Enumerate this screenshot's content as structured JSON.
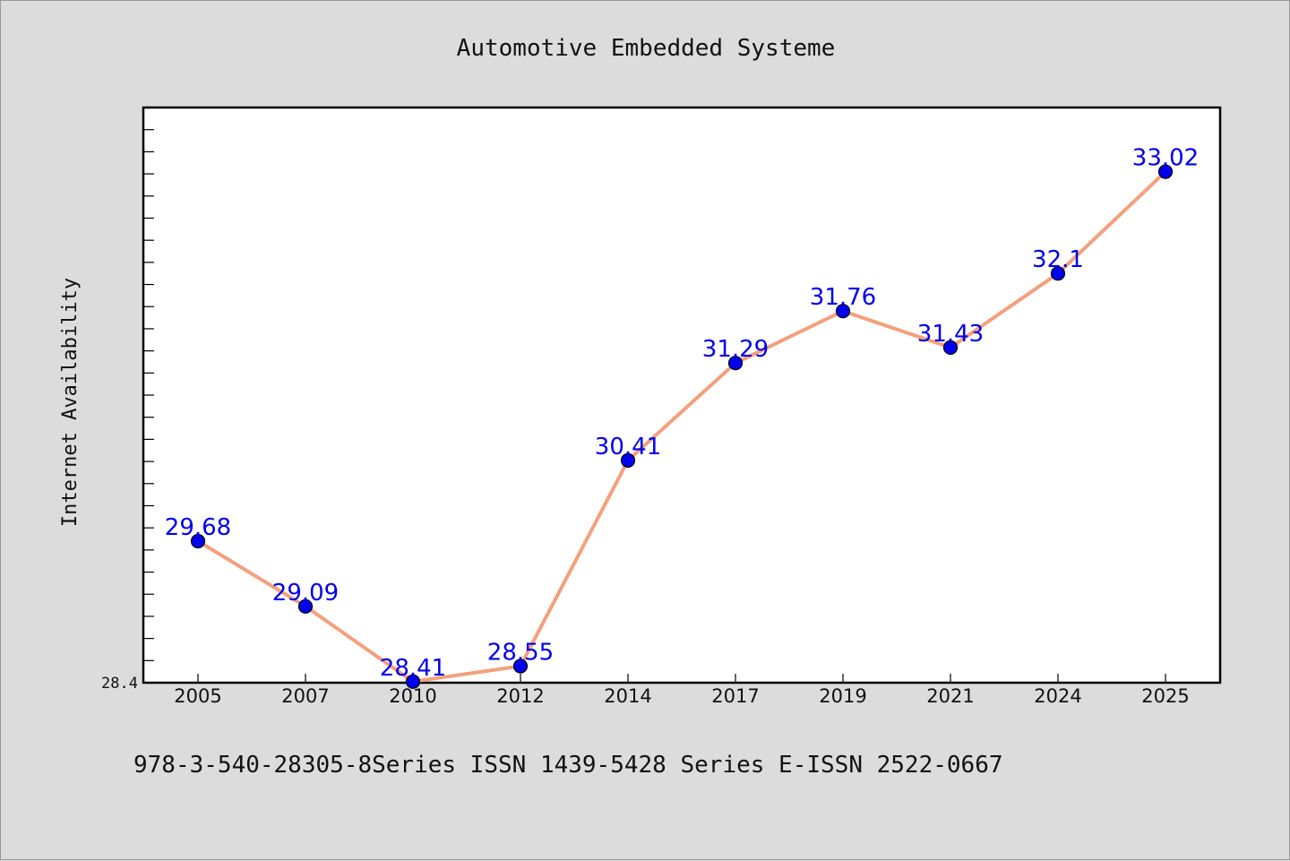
{
  "chart_data": {
    "type": "line",
    "title": "Automotive Embedded Systeme",
    "ylabel": "Internet Availability",
    "xlabel": "",
    "categories": [
      "2005",
      "2007",
      "2010",
      "2012",
      "2014",
      "2017",
      "2019",
      "2021",
      "2024",
      "2025"
    ],
    "series": [
      {
        "values": [
          29.68,
          29.09,
          28.41,
          28.55,
          30.41,
          31.29,
          31.76,
          31.43,
          32.1,
          33.02
        ],
        "data_labels": [
          "29.68",
          "29.09",
          "28.41",
          "28.55",
          "30.41",
          "31.29",
          "31.76",
          "31.43",
          "32.1",
          "33.02"
        ]
      }
    ],
    "ylim": [
      28.4,
      33.6
    ],
    "y_ticks": [
      "28.4"
    ],
    "grid": false,
    "colors": {
      "line": "#f4a07c",
      "marker": "#0000ee",
      "labels": "#0000ee",
      "plot_bg": "#ffffff",
      "page_bg": "#dcdcdc"
    }
  },
  "caption": "978-3-540-28305-8Series ISSN 1439-5428 Series E-ISSN 2522-0667"
}
